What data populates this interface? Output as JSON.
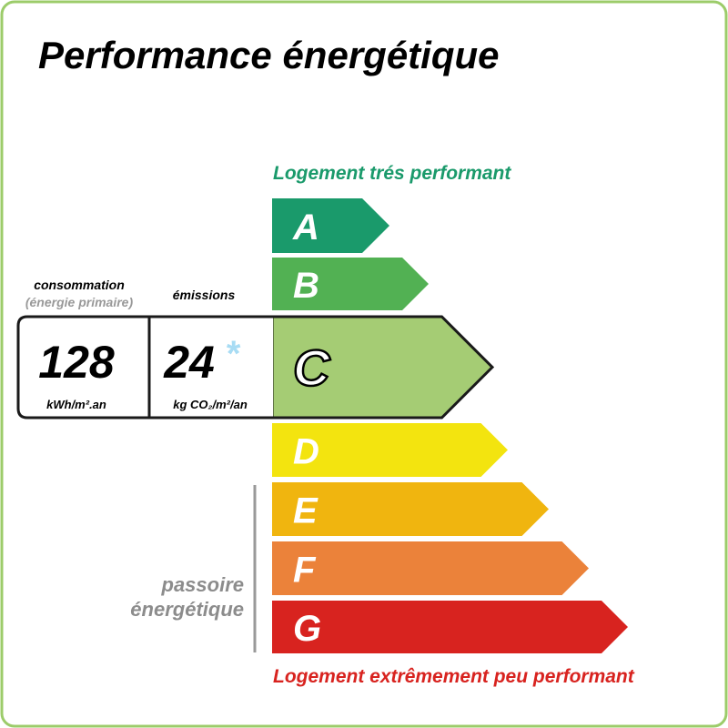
{
  "title": "Performance énergétique",
  "scale": {
    "top_label": "Logement trés performant",
    "bottom_label": "Logement extrêmement peu performant",
    "classes": [
      {
        "letter": "A",
        "color": "#1a9a6b"
      },
      {
        "letter": "B",
        "color": "#52b153"
      },
      {
        "letter": "C",
        "color": "#a5cc74"
      },
      {
        "letter": "D",
        "color": "#f3e40f"
      },
      {
        "letter": "E",
        "color": "#f0b50f"
      },
      {
        "letter": "F",
        "color": "#eb823a"
      },
      {
        "letter": "G",
        "color": "#d8231f"
      }
    ]
  },
  "consumption": {
    "label": "consommation",
    "sublabel": "(énergie primaire)",
    "value": "128",
    "unit": "kWh/m².an"
  },
  "emissions": {
    "label": "émissions",
    "value": "24",
    "marker": "*",
    "unit": "kg CO₂/m²/an"
  },
  "passoire": {
    "line1": "passoire",
    "line2": "énergétique"
  }
}
